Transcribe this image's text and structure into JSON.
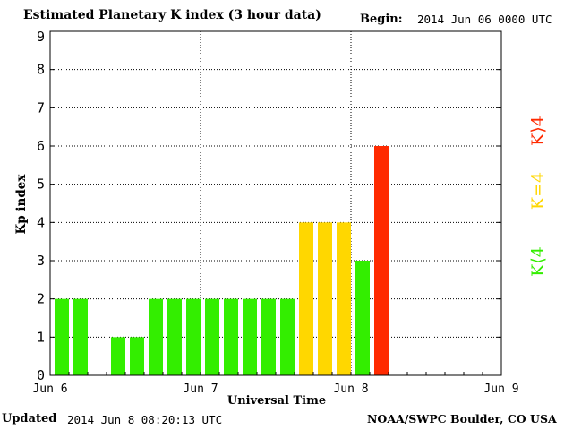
{
  "header": {
    "title": "Estimated Planetary K index (3 hour data)",
    "begin_label": "Begin:",
    "begin_value": "2014 Jun 06 0000 UTC"
  },
  "footer": {
    "updated_label": "Updated",
    "updated_value": "2014 Jun  8 08:20:13 UTC",
    "credit": "NOAA/SWPC Boulder, CO USA"
  },
  "legend": [
    {
      "label": "K⟨4",
      "color": "#33ee00"
    },
    {
      "label": "K=4",
      "color": "#ffd700"
    },
    {
      "label": "K⟩4",
      "color": "#ff2a00"
    }
  ],
  "colors": {
    "below_4": "#33ee00",
    "equal_4": "#ffd700",
    "above_4": "#ff2a00",
    "grid": "#000000"
  },
  "chart_data": {
    "type": "bar",
    "title": "Estimated Planetary K index (3 hour data)",
    "xlabel": "Universal Time",
    "ylabel": "Kp index",
    "ylim": [
      0,
      9
    ],
    "yticks": [
      "0",
      "1",
      "2",
      "3",
      "4",
      "5",
      "6",
      "7",
      "8",
      "9"
    ],
    "xticks": [
      "Jun 6",
      "Jun 7",
      "Jun 8",
      "Jun 9"
    ],
    "grid": true,
    "interval_hours": 3,
    "values": [
      2,
      2,
      0,
      1,
      1,
      2,
      2,
      2,
      2,
      2,
      2,
      2,
      2,
      4,
      4,
      4,
      3,
      6
    ],
    "categories": [
      "Jun 6 00",
      "Jun 6 03",
      "Jun 6 06",
      "Jun 6 09",
      "Jun 6 12",
      "Jun 6 15",
      "Jun 6 18",
      "Jun 6 21",
      "Jun 7 00",
      "Jun 7 03",
      "Jun 7 06",
      "Jun 7 09",
      "Jun 7 12",
      "Jun 7 15",
      "Jun 7 18",
      "Jun 7 21",
      "Jun 8 00",
      "Jun 8 03"
    ]
  }
}
